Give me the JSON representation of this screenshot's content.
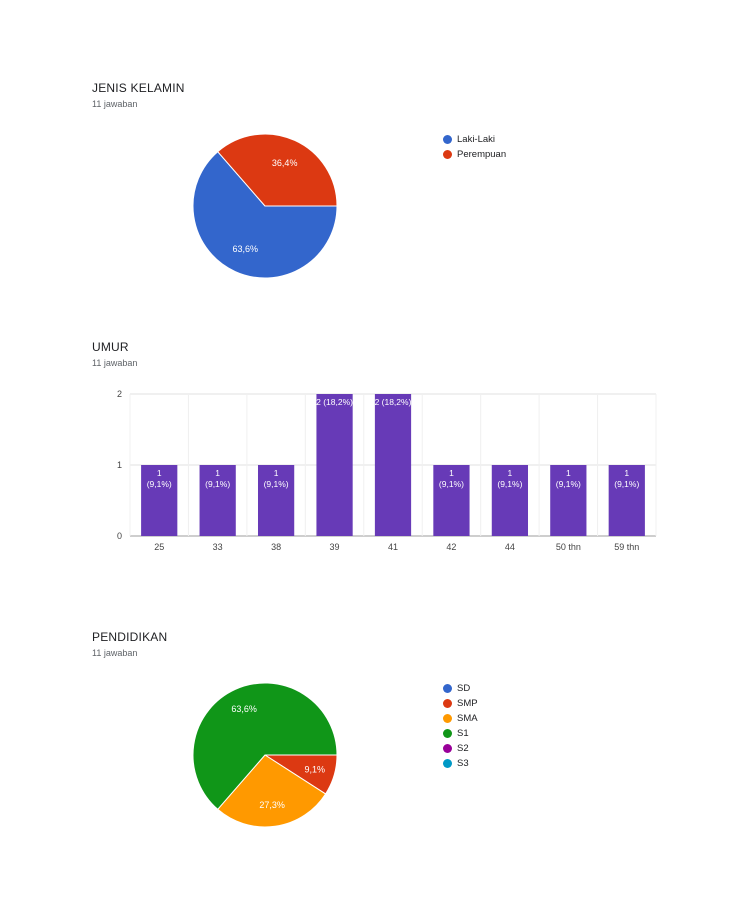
{
  "chart_data": [
    {
      "type": "pie",
      "title": "JENIS KELAMIN",
      "subtitle": "11 jawaban",
      "slices": [
        {
          "label": "Laki-Laki",
          "value": 63.6,
          "display": "63,6%",
          "color": "#3366cc"
        },
        {
          "label": "Perempuan",
          "value": 36.4,
          "display": "36,4%",
          "color": "#dc3912"
        }
      ],
      "legend_position": "right"
    },
    {
      "type": "bar",
      "title": "UMUR",
      "subtitle": "11 jawaban",
      "categories": [
        "25",
        "33",
        "38",
        "39",
        "41",
        "42",
        "44",
        "50 thn",
        "59 thn"
      ],
      "values": [
        1,
        1,
        1,
        2,
        2,
        1,
        1,
        1,
        1
      ],
      "data_labels": [
        "1\n(9,1%)",
        "1\n(9,1%)",
        "1\n(9,1%)",
        "2 (18,2%)",
        "2 (18,2%)",
        "1\n(9,1%)",
        "1\n(9,1%)",
        "1\n(9,1%)",
        "1\n(9,1%)"
      ],
      "yticks": [
        "0",
        "1",
        "2"
      ],
      "ylim": [
        0,
        2
      ],
      "color": "#673ab7",
      "grid": true
    },
    {
      "type": "pie",
      "title": "PENDIDIKAN",
      "subtitle": "11 jawaban",
      "slices": [
        {
          "label": "SD",
          "value": 0,
          "display": "",
          "color": "#3366cc"
        },
        {
          "label": "SMP",
          "value": 9.1,
          "display": "9,1%",
          "color": "#dc3912"
        },
        {
          "label": "SMA",
          "value": 27.3,
          "display": "27,3%",
          "color": "#ff9900"
        },
        {
          "label": "S1",
          "value": 63.6,
          "display": "63,6%",
          "color": "#109618"
        },
        {
          "label": "S2",
          "value": 0,
          "display": "",
          "color": "#990099"
        },
        {
          "label": "S3",
          "value": 0,
          "display": "",
          "color": "#0099c6"
        }
      ],
      "legend_position": "right"
    }
  ]
}
